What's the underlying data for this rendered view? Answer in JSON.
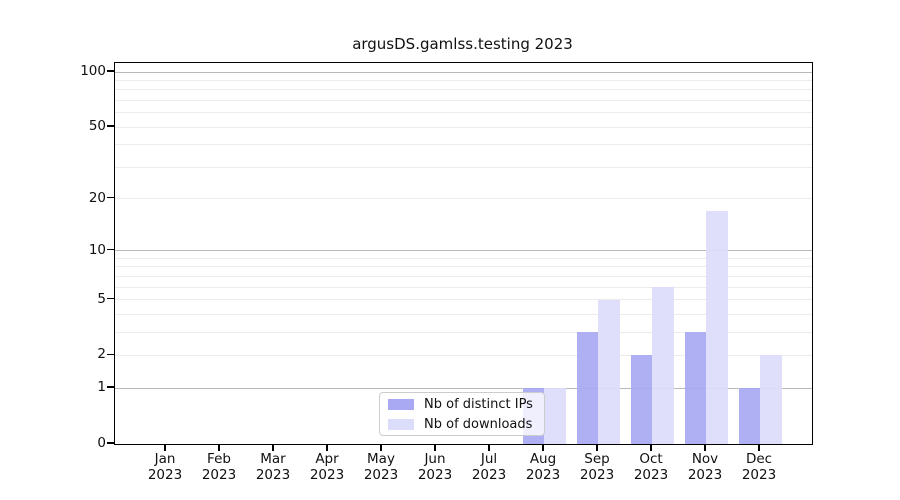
{
  "title": "argusDS.gamlss.testing 2023",
  "legend": {
    "items": [
      {
        "label": "Nb of distinct IPs",
        "color": "#a8a8f3"
      },
      {
        "label": "Nb of downloads",
        "color": "#dcdcfb"
      }
    ]
  },
  "colors": {
    "bar_distinct_ips": "#a8a8f3",
    "bar_downloads": "#dcdcfb",
    "major_gridline": "#b9b9b9",
    "minor_gridline": "#ececec",
    "axis": "#000000"
  },
  "chart_data": {
    "type": "bar",
    "title": "argusDS.gamlss.testing 2023",
    "categories": [
      {
        "month": "Jan",
        "year": "2023"
      },
      {
        "month": "Feb",
        "year": "2023"
      },
      {
        "month": "Mar",
        "year": "2023"
      },
      {
        "month": "Apr",
        "year": "2023"
      },
      {
        "month": "May",
        "year": "2023"
      },
      {
        "month": "Jun",
        "year": "2023"
      },
      {
        "month": "Jul",
        "year": "2023"
      },
      {
        "month": "Aug",
        "year": "2023"
      },
      {
        "month": "Sep",
        "year": "2023"
      },
      {
        "month": "Oct",
        "year": "2023"
      },
      {
        "month": "Nov",
        "year": "2023"
      },
      {
        "month": "Dec",
        "year": "2023"
      }
    ],
    "series": [
      {
        "name": "Nb of distinct IPs",
        "color": "#a8a8f3",
        "values": [
          0,
          0,
          0,
          0,
          0,
          0,
          0,
          1,
          3,
          2,
          3,
          1
        ]
      },
      {
        "name": "Nb of downloads",
        "color": "#dcdcfb",
        "values": [
          0,
          0,
          0,
          0,
          0,
          0,
          0,
          1,
          5,
          6,
          17,
          2
        ]
      }
    ],
    "xlabel": "",
    "ylabel": "",
    "y_axis": {
      "scale": "log1p",
      "tick_labels": [
        "0",
        "1",
        "2",
        "5",
        "10",
        "20",
        "50",
        "100"
      ],
      "tick_values": [
        0,
        1,
        2,
        5,
        10,
        20,
        50,
        100
      ],
      "major_gridlines": [
        1,
        10,
        100
      ],
      "minor_gridlines": [
        2,
        3,
        4,
        5,
        6,
        7,
        8,
        9,
        20,
        30,
        40,
        50,
        60,
        70,
        80,
        90
      ],
      "range": [
        0,
        110
      ]
    },
    "legend_position": "lower center",
    "grid": true
  }
}
